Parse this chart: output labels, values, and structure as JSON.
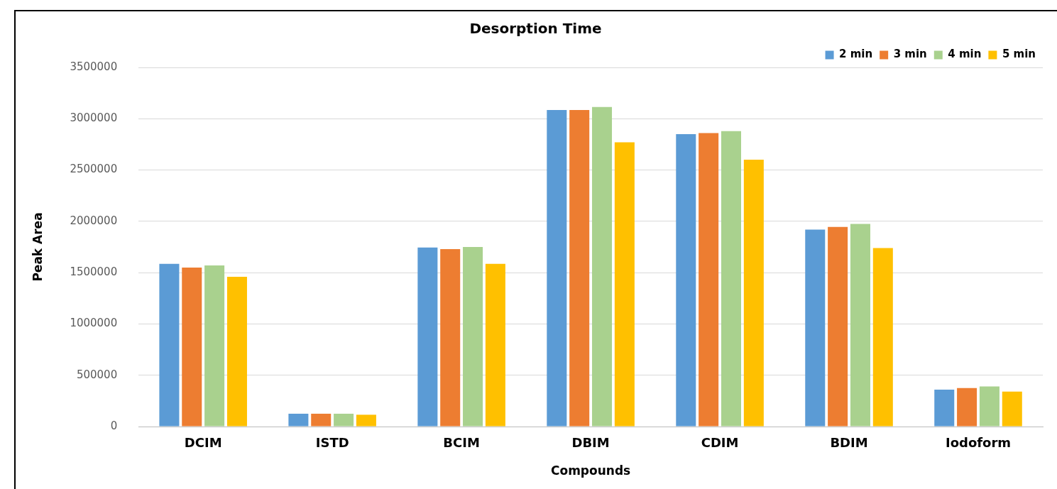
{
  "chart_data": {
    "type": "bar",
    "title": "Desorption Time",
    "xlabel": "Compounds",
    "ylabel": "Peak Area",
    "categories": [
      "DCIM",
      "ISTD",
      "BCIM",
      "DBIM",
      "CDIM",
      "BDIM",
      "Iodoform"
    ],
    "series": [
      {
        "name": "2 min",
        "color": "#5b9bd5",
        "values": [
          1585000,
          125000,
          1745000,
          3085000,
          2850000,
          1920000,
          360000
        ]
      },
      {
        "name": "3 min",
        "color": "#ed7d31",
        "values": [
          1550000,
          125000,
          1730000,
          3085000,
          2860000,
          1945000,
          375000
        ]
      },
      {
        "name": "4 min",
        "color": "#a9d18e",
        "values": [
          1570000,
          125000,
          1750000,
          3115000,
          2880000,
          1975000,
          390000
        ]
      },
      {
        "name": "5 min",
        "color": "#ffc000",
        "values": [
          1460000,
          115000,
          1585000,
          2770000,
          2600000,
          1740000,
          340000
        ]
      }
    ],
    "ylim": [
      0,
      3500000
    ],
    "yticks": [
      0,
      500000,
      1000000,
      1500000,
      2000000,
      2500000,
      3000000,
      3500000
    ],
    "grid": "y",
    "legend": "top right"
  }
}
